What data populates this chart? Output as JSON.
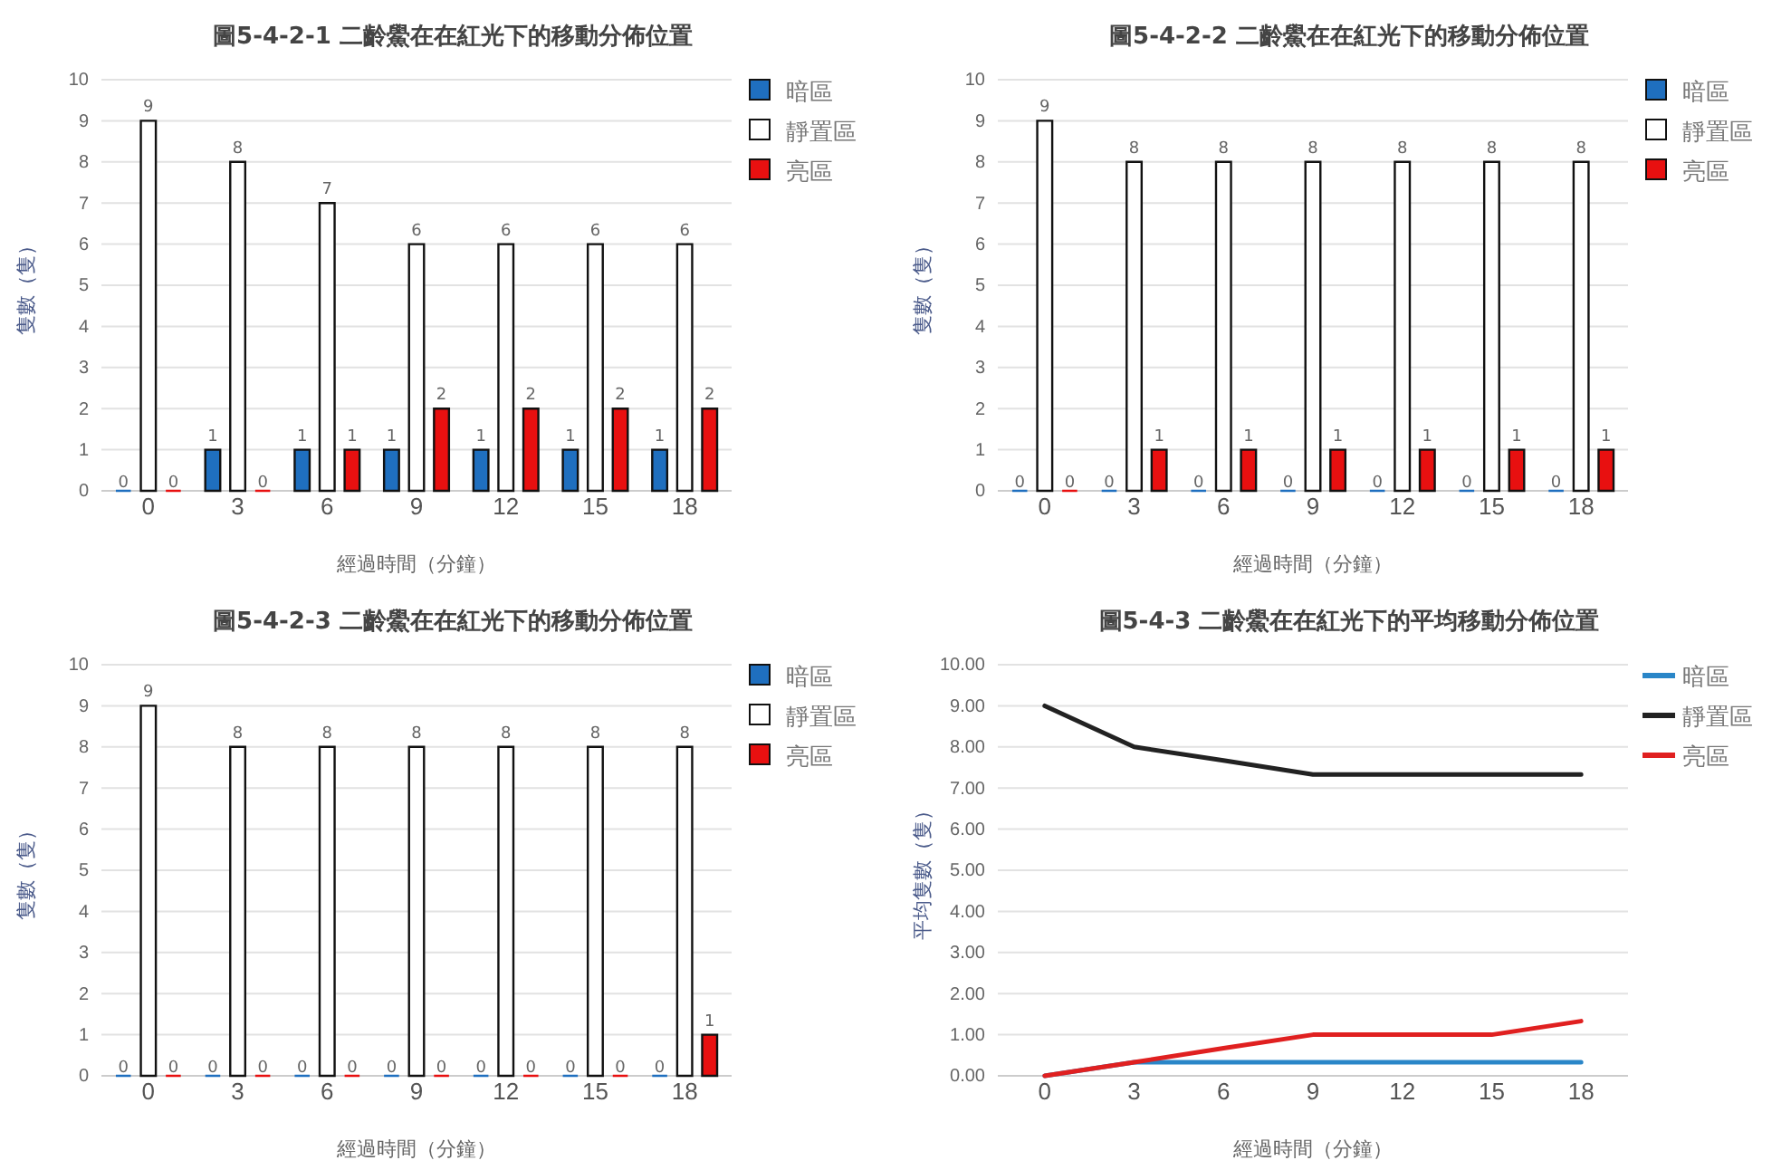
{
  "chart_data": [
    {
      "type": "bar",
      "title": "圖5-4-2-1 二齡鱟在在紅光下的移動分佈位置",
      "xlabel": "經過時間（分鐘）",
      "ylabel": "隻數（隻）",
      "categories": [
        "0",
        "3",
        "6",
        "9",
        "12",
        "15",
        "18"
      ],
      "ylim": [
        0,
        10
      ],
      "yticks": [
        0,
        1,
        2,
        3,
        4,
        5,
        6,
        7,
        8,
        9,
        10
      ],
      "grid": "y",
      "legend": "top right",
      "data_labels": true,
      "series": [
        {
          "name": "暗區",
          "color": "#1f6fbf",
          "values": [
            0,
            1,
            1,
            1,
            1,
            1,
            1
          ]
        },
        {
          "name": "靜置區",
          "color": "#ffffff",
          "values": [
            9,
            8,
            7,
            6,
            6,
            6,
            6
          ]
        },
        {
          "name": "亮區",
          "color": "#e81010",
          "values": [
            0,
            0,
            1,
            2,
            2,
            2,
            2
          ]
        }
      ]
    },
    {
      "type": "bar",
      "title": "圖5-4-2-2 二齡鱟在在紅光下的移動分佈位置",
      "xlabel": "經過時間（分鐘）",
      "ylabel": "隻數（隻）",
      "categories": [
        "0",
        "3",
        "6",
        "9",
        "12",
        "15",
        "18"
      ],
      "ylim": [
        0,
        10
      ],
      "yticks": [
        0,
        1,
        2,
        3,
        4,
        5,
        6,
        7,
        8,
        9,
        10
      ],
      "grid": "y",
      "legend": "top right",
      "data_labels": true,
      "series": [
        {
          "name": "暗區",
          "color": "#1f6fbf",
          "values": [
            0,
            0,
            0,
            0,
            0,
            0,
            0
          ]
        },
        {
          "name": "靜置區",
          "color": "#ffffff",
          "values": [
            9,
            8,
            8,
            8,
            8,
            8,
            8
          ]
        },
        {
          "name": "亮區",
          "color": "#e81010",
          "values": [
            0,
            1,
            1,
            1,
            1,
            1,
            1
          ]
        }
      ]
    },
    {
      "type": "bar",
      "title": "圖5-4-2-3 二齡鱟在在紅光下的移動分佈位置",
      "xlabel": "經過時間（分鐘）",
      "ylabel": "隻數（隻）",
      "categories": [
        "0",
        "3",
        "6",
        "9",
        "12",
        "15",
        "18"
      ],
      "ylim": [
        0,
        10
      ],
      "yticks": [
        0,
        1,
        2,
        3,
        4,
        5,
        6,
        7,
        8,
        9,
        10
      ],
      "grid": "y",
      "legend": "top right",
      "data_labels": true,
      "series": [
        {
          "name": "暗區",
          "color": "#1f6fbf",
          "values": [
            0,
            0,
            0,
            0,
            0,
            0,
            0
          ]
        },
        {
          "name": "靜置區",
          "color": "#ffffff",
          "values": [
            9,
            8,
            8,
            8,
            8,
            8,
            8
          ]
        },
        {
          "name": "亮區",
          "color": "#e81010",
          "values": [
            0,
            0,
            0,
            0,
            0,
            0,
            1
          ]
        }
      ]
    },
    {
      "type": "line",
      "title": "圖5-4-3 二齡鱟在在紅光下的平均移動分佈位置",
      "xlabel": "經過時間（分鐘）",
      "ylabel": "平均隻數（隻）",
      "categories": [
        "0",
        "3",
        "6",
        "9",
        "12",
        "15",
        "18"
      ],
      "ylim": [
        0,
        10
      ],
      "yticks": [
        {
          "value": 0,
          "label": "0.00"
        },
        {
          "value": 1,
          "label": "1.00"
        },
        {
          "value": 2,
          "label": "2.00"
        },
        {
          "value": 3,
          "label": "3.00"
        },
        {
          "value": 4,
          "label": "4.00"
        },
        {
          "value": 5,
          "label": "5.00"
        },
        {
          "value": 6,
          "label": "6.00"
        },
        {
          "value": 7,
          "label": "7.00"
        },
        {
          "value": 8,
          "label": "8.00"
        },
        {
          "value": 9,
          "label": "9.00"
        },
        {
          "value": 10,
          "label": "10.00"
        }
      ],
      "grid": "y",
      "legend": "top right",
      "series": [
        {
          "name": "暗區",
          "color": "#2a86c8",
          "values": [
            0,
            0.33,
            0.33,
            0.33,
            0.33,
            0.33,
            0.33
          ]
        },
        {
          "name": "靜置區",
          "color": "#222222",
          "values": [
            9,
            8,
            7.67,
            7.33,
            7.33,
            7.33,
            7.33
          ]
        },
        {
          "name": "亮區",
          "color": "#e02020",
          "values": [
            0,
            0.33,
            0.67,
            1,
            1,
            1,
            1.33
          ]
        }
      ]
    }
  ]
}
